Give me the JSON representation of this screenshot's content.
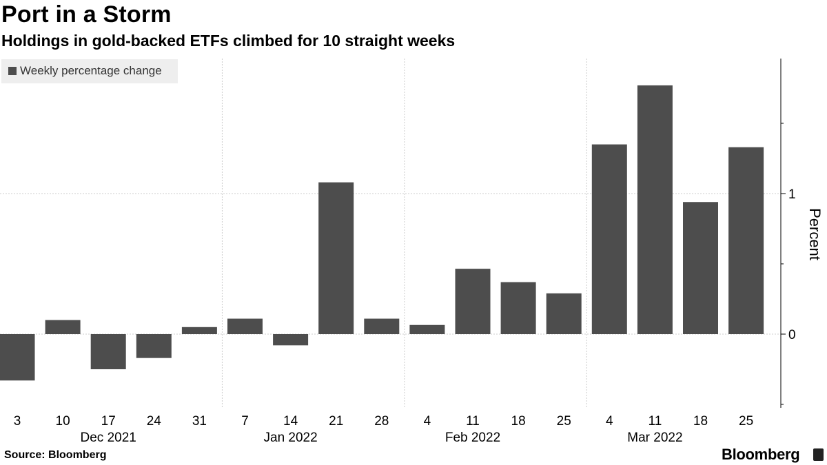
{
  "title": "Port in a Storm",
  "subtitle": "Holdings in gold-backed ETFs climbed for 10 straight weeks",
  "legend": {
    "label": "Weekly percentage change"
  },
  "source": "Source: Bloomberg",
  "brand": "Bloomberg",
  "colors": {
    "bar": "#4d4d4d",
    "grid": "#cccccc",
    "axis": "#000000",
    "background": "#ffffff"
  },
  "chart_data": {
    "type": "bar",
    "title": "Port in a Storm",
    "subtitle": "Holdings in gold-backed ETFs climbed for 10 straight weeks",
    "xlabel": "",
    "ylabel": "Percent",
    "ylim": [
      -0.5,
      1.95
    ],
    "yticks": [
      0,
      1
    ],
    "grid": true,
    "legend_position": "top-left",
    "categories": [
      "2021-12-03",
      "2021-12-10",
      "2021-12-17",
      "2021-12-24",
      "2021-12-31",
      "2022-01-07",
      "2022-01-14",
      "2022-01-21",
      "2022-01-28",
      "2022-02-04",
      "2022-02-11",
      "2022-02-18",
      "2022-02-25",
      "2022-03-04",
      "2022-03-11",
      "2022-03-18",
      "2022-03-25"
    ],
    "tick_labels": [
      "3",
      "10",
      "17",
      "24",
      "31",
      "7",
      "14",
      "21",
      "28",
      "4",
      "11",
      "18",
      "25",
      "4",
      "11",
      "18",
      "25"
    ],
    "month_labels": [
      {
        "label": "Dec 2021",
        "center_index": 2
      },
      {
        "label": "Jan 2022",
        "center_index": 6
      },
      {
        "label": "Feb 2022",
        "center_index": 10
      },
      {
        "label": "Mar 2022",
        "center_index": 14
      }
    ],
    "series": [
      {
        "name": "Weekly percentage change",
        "values": [
          -0.33,
          0.1,
          -0.25,
          -0.17,
          0.05,
          0.11,
          -0.08,
          1.08,
          0.11,
          0.065,
          0.465,
          0.37,
          0.29,
          1.35,
          1.77,
          0.94,
          1.33
        ]
      }
    ]
  }
}
